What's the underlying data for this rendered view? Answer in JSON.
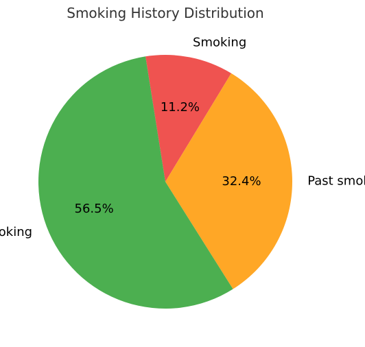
{
  "chart_data": {
    "type": "pie",
    "title": "Smoking History Distribution",
    "categories": [
      "Smoking",
      "Past smoking",
      "No smoking"
    ],
    "values": [
      11.2,
      32.4,
      56.5
    ],
    "value_labels": [
      "11.2%",
      "32.4%",
      "56.5%"
    ],
    "colors": [
      "#EF5350",
      "#FFA726",
      "#4CAF50"
    ],
    "start_angle_deg": 99,
    "direction": "clockwise",
    "legend": "none"
  }
}
